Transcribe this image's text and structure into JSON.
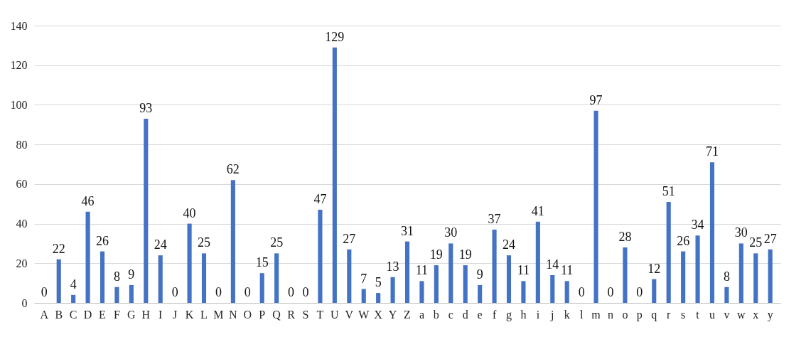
{
  "chart_data": {
    "type": "bar",
    "categories": [
      "A",
      "B",
      "C",
      "D",
      "E",
      "F",
      "G",
      "H",
      "I",
      "J",
      "K",
      "L",
      "M",
      "N",
      "O",
      "P",
      "Q",
      "R",
      "S",
      "T",
      "U",
      "V",
      "W",
      "X",
      "Y",
      "Z",
      "a",
      "b",
      "c",
      "d",
      "e",
      "f",
      "g",
      "h",
      "i",
      "j",
      "k",
      "l",
      "m",
      "n",
      "o",
      "p",
      "q",
      "r",
      "s",
      "t",
      "u",
      "v",
      "w",
      "x",
      "y"
    ],
    "values": [
      0,
      22,
      4,
      46,
      26,
      8,
      9,
      93,
      24,
      0,
      40,
      25,
      0,
      62,
      0,
      15,
      25,
      0,
      0,
      47,
      129,
      27,
      7,
      5,
      13,
      31,
      11,
      19,
      30,
      19,
      9,
      37,
      24,
      11,
      41,
      14,
      11,
      0,
      97,
      0,
      28,
      0,
      12,
      51,
      26,
      34,
      71,
      8,
      30,
      25,
      27
    ],
    "color": "#4472c4",
    "ylim": [
      0,
      140
    ],
    "yticks": [
      0,
      20,
      40,
      60,
      80,
      100,
      120,
      140
    ],
    "grid": true,
    "data_labels": true
  }
}
